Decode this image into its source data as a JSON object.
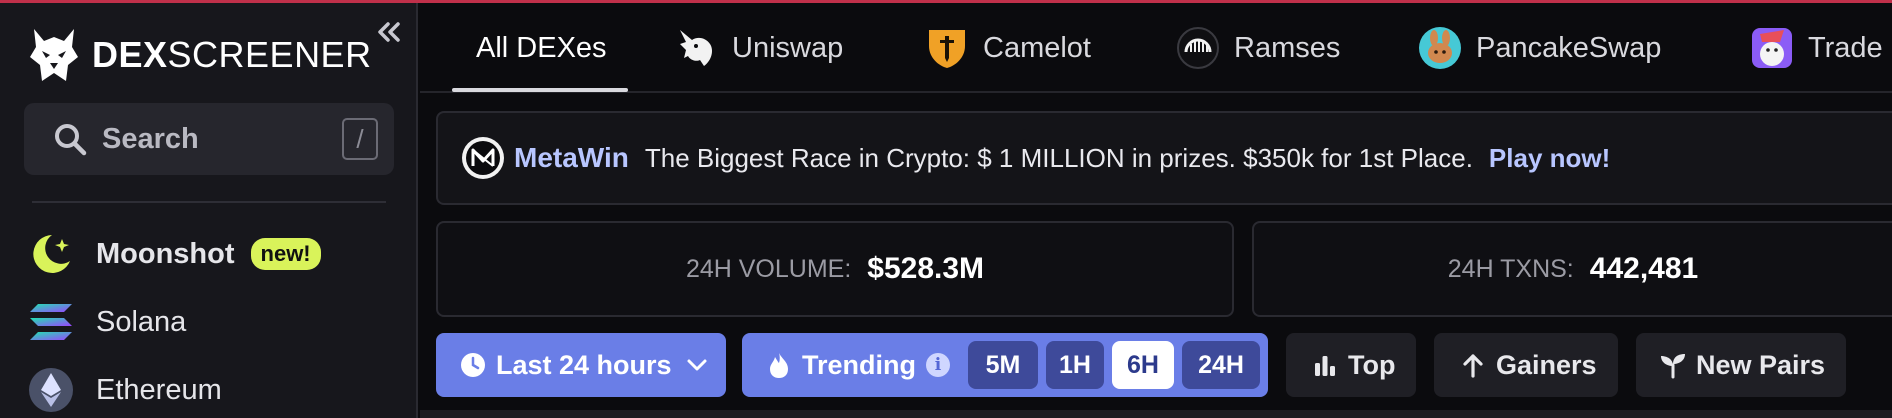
{
  "app": {
    "logo_bold": "DEX",
    "logo_light": "SCREENER",
    "collapse_glyph": "«",
    "accent": "#6a7ee7"
  },
  "sidebar": {
    "search": {
      "label": "Search",
      "shortcut": "/"
    },
    "items": [
      {
        "label": "Moonshot",
        "badge": "new!",
        "icon": "moon-star-icon",
        "color": "#d9f35a"
      },
      {
        "label": "Solana",
        "icon": "solana-icon"
      },
      {
        "label": "Ethereum",
        "icon": "ethereum-icon"
      }
    ]
  },
  "tabs": [
    {
      "label": "All DEXes",
      "active": true
    },
    {
      "label": "Uniswap",
      "icon": "unicorn-icon"
    },
    {
      "label": "Camelot",
      "icon": "camelot-shield-icon"
    },
    {
      "label": "Ramses",
      "icon": "ramses-icon"
    },
    {
      "label": "PancakeSwap",
      "icon": "pancake-bunny-icon"
    },
    {
      "label": "Trade",
      "icon": "trader-joe-icon"
    }
  ],
  "banner": {
    "brand": "MetaWin",
    "text": "The Biggest Race in Crypto: $ 1 MILLION in prizes. $350k for 1st Place.",
    "cta": "Play now!"
  },
  "stats": {
    "volume": {
      "label": "24H VOLUME:",
      "value": "$528.3M"
    },
    "txns": {
      "label": "24H TXNS:",
      "value": "442,481"
    }
  },
  "filters": {
    "timeframe": "Last 24 hours",
    "trending": "Trending",
    "trending_info": "i",
    "periods": [
      "5M",
      "1H",
      "6H",
      "24H"
    ],
    "selected_period": "6H",
    "top": "Top",
    "gainers": "Gainers",
    "new_pairs": "New Pairs"
  }
}
